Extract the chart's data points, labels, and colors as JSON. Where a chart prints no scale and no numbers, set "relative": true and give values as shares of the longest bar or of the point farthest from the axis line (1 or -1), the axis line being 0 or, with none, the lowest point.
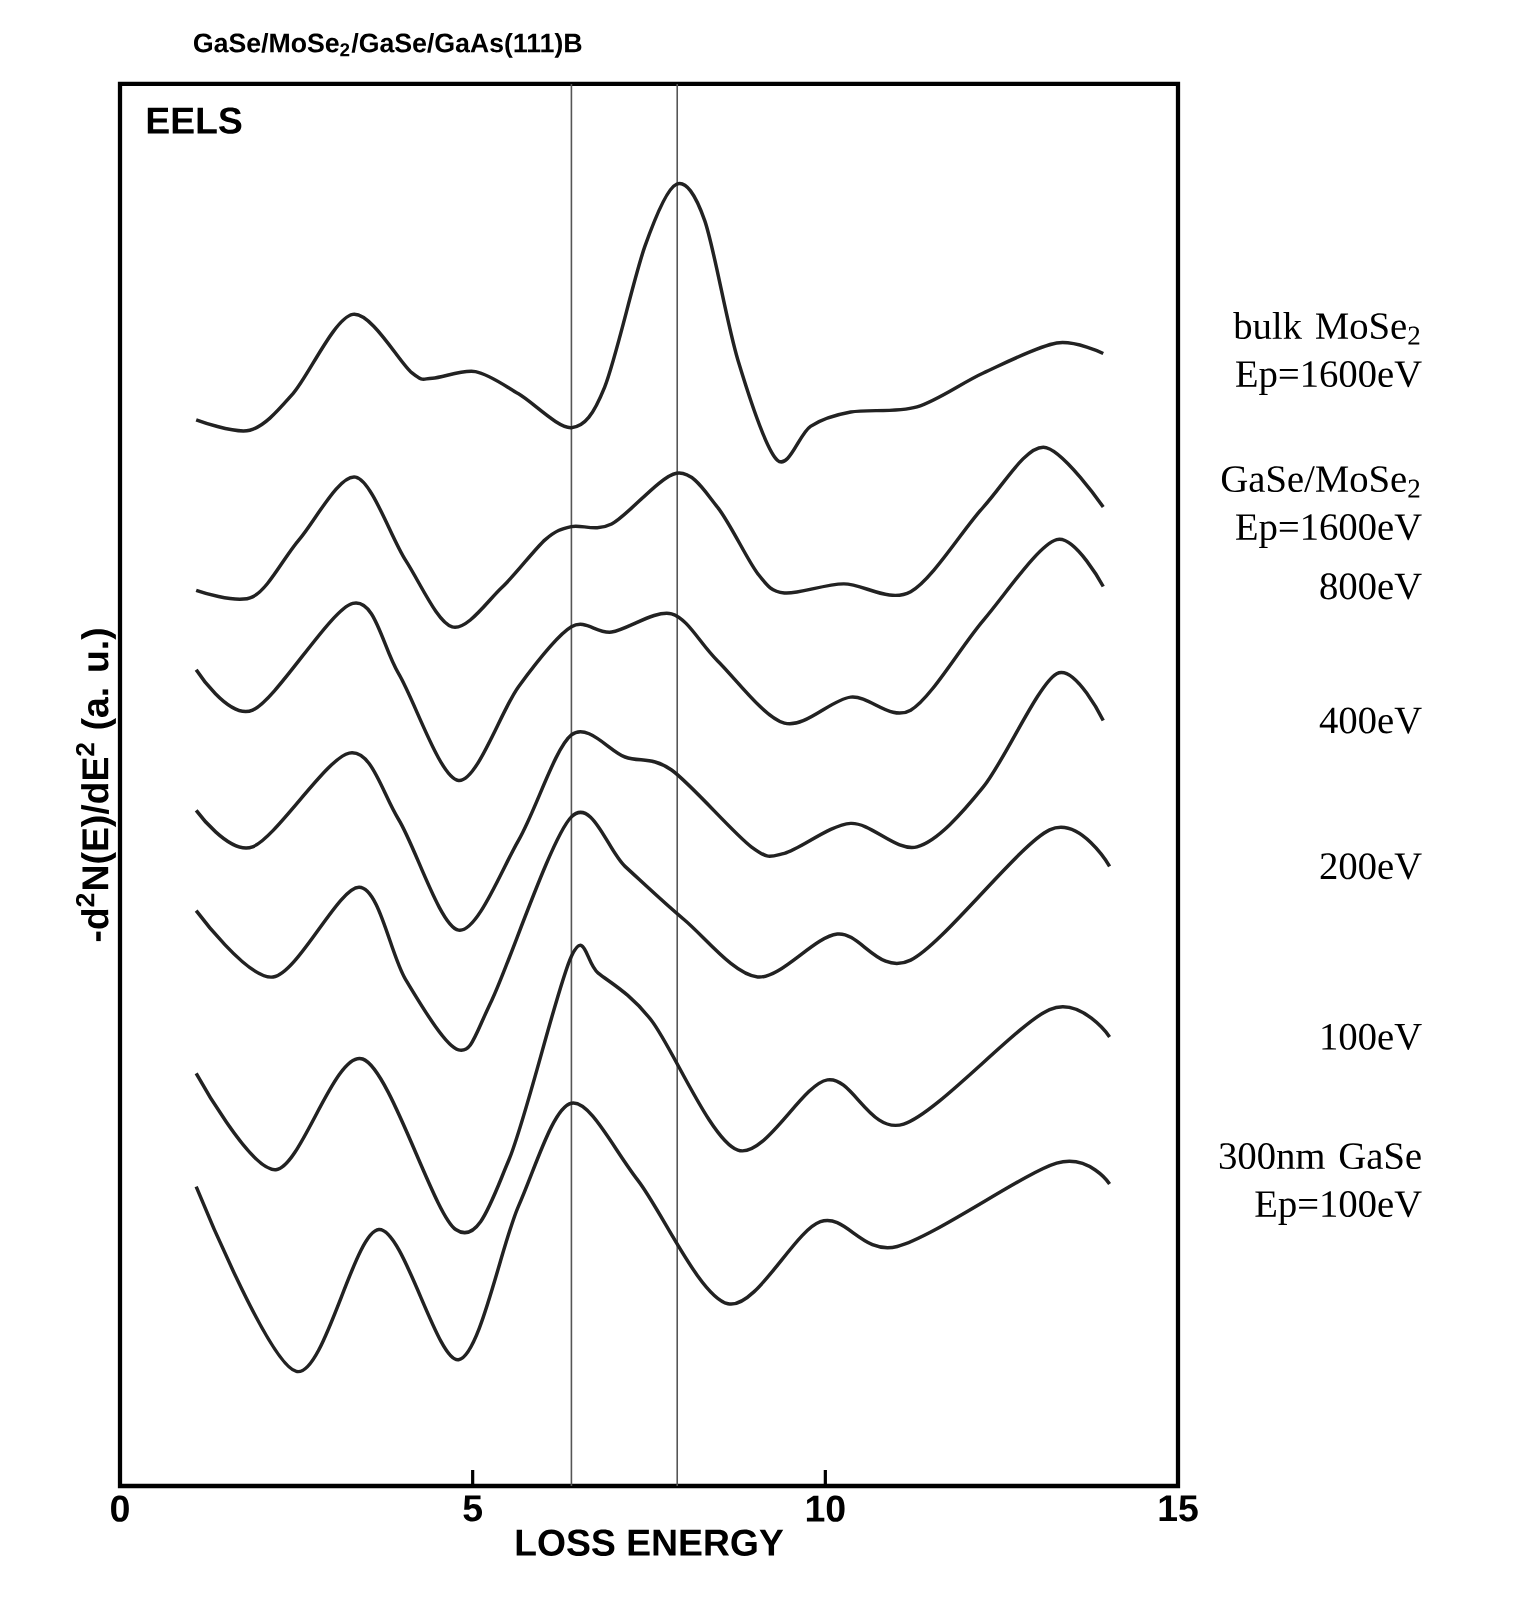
{
  "chart_data": {
    "type": "line",
    "title": "GaSe/MoSe$_{2}$/GaSe/GaAs(111)B",
    "xlabel": "LOSS ENERGY",
    "ylabel": "-d$^{2}$N(E)/dE$^{2}$ (a. u.)",
    "annotations": [
      "EELS"
    ],
    "relative": true,
    "xlim": [
      0,
      15
    ],
    "xticks": [
      0,
      5,
      10,
      15
    ],
    "grid": false,
    "legend": false,
    "marker": "none",
    "line_style": "solid",
    "ref_lines": [
      {
        "axis": "x",
        "value": 7.9,
        "color": "#555555"
      },
      {
        "axis": "x",
        "value": 6.4,
        "color": "#555555"
      }
    ],
    "series": [
      {
        "name": "bulk MoSe$_{2}$ Ep=1600eV",
        "color": "#222222",
        "x": [
          1.08,
          1.84,
          2.45,
          3.3,
          4.14,
          4.43,
          5.04,
          5.65,
          6.4,
          6.87,
          7.44,
          7.89,
          8.29,
          8.76,
          9.32,
          9.79,
          10.36,
          11.3,
          12.24,
          13.28,
          13.94
        ],
        "values": [
          0.819,
          0.811,
          0.839,
          0.9,
          0.855,
          0.851,
          0.856,
          0.839,
          0.813,
          0.844,
          0.952,
          1.0,
          0.972,
          0.865,
          0.788,
          0.814,
          0.825,
          0.829,
          0.855,
          0.878,
          0.87
        ]
      },
      {
        "name": "GaSe/MoSe$_{2}$ Ep=1600eV",
        "color": "#222222",
        "x": [
          1.08,
          1.88,
          2.54,
          3.34,
          4.05,
          4.71,
          5.41,
          6.03,
          6.4,
          6.97,
          7.89,
          8.47,
          9.04,
          9.42,
          10.26,
          11.21,
          12.24,
          13.09,
          13.94
        ],
        "values": [
          0.688,
          0.683,
          0.727,
          0.775,
          0.711,
          0.66,
          0.69,
          0.727,
          0.737,
          0.739,
          0.778,
          0.752,
          0.701,
          0.686,
          0.693,
          0.687,
          0.752,
          0.798,
          0.752
        ]
      },
      {
        "name": "800eV",
        "color": "#222222",
        "x": [
          1.08,
          1.88,
          3.3,
          3.95,
          4.8,
          5.65,
          6.4,
          6.97,
          7.82,
          8.47,
          9.42,
          10.36,
          11.21,
          12.24,
          13.28,
          13.94
        ],
        "values": [
          0.627,
          0.596,
          0.678,
          0.624,
          0.542,
          0.614,
          0.66,
          0.656,
          0.67,
          0.634,
          0.586,
          0.606,
          0.596,
          0.665,
          0.727,
          0.691
        ]
      },
      {
        "name": "400eV",
        "color": "#222222",
        "x": [
          1.08,
          1.88,
          3.25,
          3.95,
          4.8,
          5.65,
          6.4,
          7.16,
          7.82,
          8.95,
          9.42,
          10.36,
          11.3,
          12.24,
          13.28,
          13.94
        ],
        "values": [
          0.519,
          0.491,
          0.563,
          0.512,
          0.427,
          0.496,
          0.577,
          0.56,
          0.55,
          0.491,
          0.486,
          0.509,
          0.491,
          0.537,
          0.624,
          0.588
        ]
      },
      {
        "name": "200eV",
        "color": "#222222",
        "x": [
          1.08,
          2.17,
          3.39,
          4.05,
          4.8,
          5.27,
          6.4,
          7.16,
          8.0,
          9.04,
          10.17,
          11.21,
          13.18,
          14.03
        ],
        "values": [
          0.442,
          0.391,
          0.46,
          0.389,
          0.335,
          0.373,
          0.514,
          0.476,
          0.435,
          0.391,
          0.424,
          0.404,
          0.504,
          0.476
        ]
      },
      {
        "name": "100eV",
        "color": "#222222",
        "x": [
          1.08,
          2.21,
          3.44,
          4.76,
          5.51,
          6.4,
          6.78,
          7.53,
          8.76,
          10.03,
          11.11,
          13.18,
          14.03
        ],
        "values": [
          0.317,
          0.243,
          0.328,
          0.197,
          0.25,
          0.407,
          0.394,
          0.358,
          0.258,
          0.312,
          0.278,
          0.366,
          0.345
        ]
      },
      {
        "name": "300nm GaSe Ep=100eV",
        "color": "#222222",
        "x": [
          1.08,
          2.5,
          3.67,
          4.8,
          5.65,
          6.4,
          7.34,
          8.62,
          9.93,
          11.02,
          13.28,
          14.03
        ],
        "values": [
          0.23,
          0.088,
          0.197,
          0.097,
          0.215,
          0.294,
          0.235,
          0.14,
          0.203,
          0.184,
          0.248,
          0.232
        ]
      }
    ]
  }
}
